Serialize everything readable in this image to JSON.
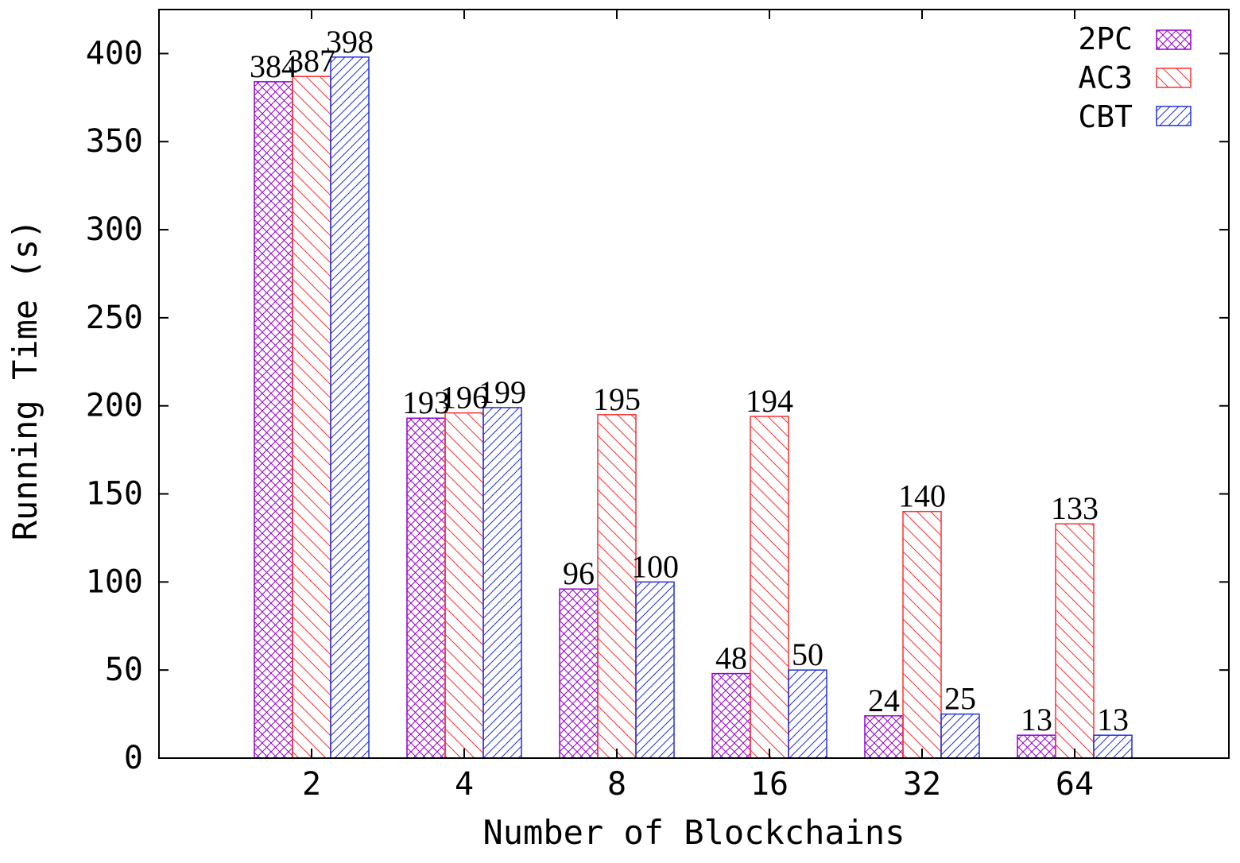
{
  "colors": {
    "2PC": "#9400d3",
    "AC3": "#ff3030",
    "CBT": "#2030e0",
    "axis": "#000000",
    "background": "#ffffff"
  },
  "chart_data": {
    "type": "bar",
    "title": "",
    "xlabel": "Number of Blockchains",
    "ylabel": "Running Time (s)",
    "categories": [
      "2",
      "4",
      "8",
      "16",
      "32",
      "64"
    ],
    "series": [
      {
        "name": "2PC",
        "values": [
          384,
          193,
          96,
          48,
          24,
          13
        ],
        "pattern": "crosshatch"
      },
      {
        "name": "AC3",
        "values": [
          387,
          196,
          195,
          194,
          140,
          133
        ],
        "pattern": "backslash"
      },
      {
        "name": "CBT",
        "values": [
          398,
          199,
          100,
          50,
          25,
          13
        ],
        "pattern": "forward-slash"
      }
    ],
    "ylim": [
      0,
      425
    ],
    "yticks": [
      "0",
      "50",
      "100",
      "150",
      "200",
      "250",
      "300",
      "350",
      "400"
    ],
    "data_labels": true,
    "legend_position": "top-right",
    "grid": false
  }
}
